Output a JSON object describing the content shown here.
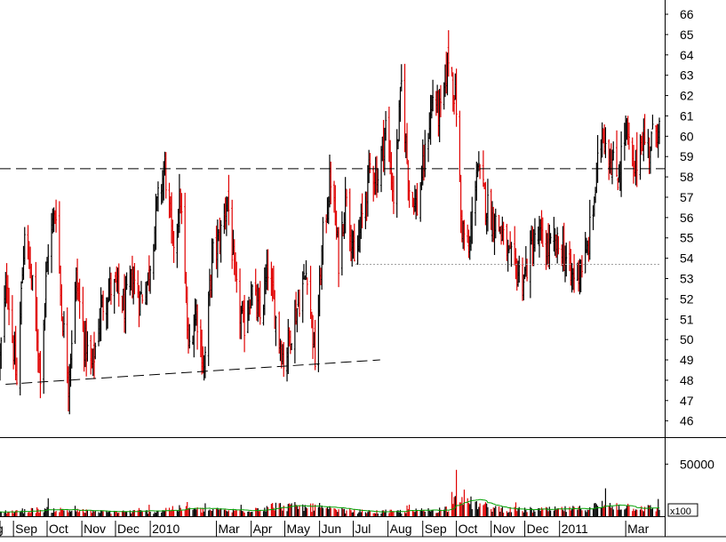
{
  "chart_data": [
    {
      "type": "ohlc",
      "title": "",
      "xlabel": "",
      "ylabel": "",
      "ylim": [
        45.2,
        66.7
      ],
      "y_ticks": [
        46,
        47,
        48,
        49,
        50,
        51,
        52,
        53,
        54,
        55,
        56,
        57,
        58,
        59,
        60,
        61,
        62,
        63,
        64,
        65,
        66
      ],
      "x_tick_labels": [
        "g",
        "Sep",
        "Oct",
        "Nov",
        "Dec",
        "2010",
        "Mar",
        "Apr",
        "May",
        "Jun",
        "Jul",
        "Aug",
        "Sep",
        "Oct",
        "Nov",
        "Dec",
        "2011",
        "Mar"
      ],
      "grid": false,
      "legend": "none",
      "colors": {
        "up": "#000000",
        "down": "#e00000",
        "trendline": "#000000",
        "support_line": "#a0a0a0"
      },
      "anchors": {
        "dates": [
          "2009-08-20",
          "2009-08-26",
          "2009-09-04",
          "2009-09-11",
          "2009-09-18",
          "2009-09-25",
          "2009-10-02",
          "2009-10-09",
          "2009-10-14",
          "2009-10-20",
          "2009-10-27",
          "2009-11-03",
          "2009-11-10",
          "2009-11-18",
          "2009-11-25",
          "2009-12-02",
          "2009-12-09",
          "2009-12-16",
          "2009-12-23",
          "2009-12-30",
          "2010-01-07",
          "2010-01-14",
          "2010-01-21",
          "2010-01-28",
          "2010-02-04",
          "2010-02-11",
          "2010-02-18",
          "2010-02-25",
          "2010-03-04",
          "2010-03-11",
          "2010-03-18",
          "2010-03-25",
          "2010-04-01",
          "2010-04-09",
          "2010-04-16",
          "2010-04-23",
          "2010-04-30",
          "2010-05-07",
          "2010-05-14",
          "2010-05-21",
          "2010-05-28",
          "2010-06-04",
          "2010-06-11",
          "2010-06-18",
          "2010-06-25",
          "2010-07-02",
          "2010-07-09",
          "2010-07-16",
          "2010-07-23",
          "2010-07-30",
          "2010-08-06",
          "2010-08-13",
          "2010-08-20",
          "2010-08-27",
          "2010-09-03",
          "2010-09-10",
          "2010-09-17",
          "2010-09-24",
          "2010-10-01",
          "2010-10-05",
          "2010-10-12",
          "2010-10-19",
          "2010-10-26",
          "2010-11-02",
          "2010-11-09",
          "2010-11-16",
          "2010-11-23",
          "2010-11-30",
          "2010-12-07",
          "2010-12-14",
          "2010-12-21",
          "2010-12-28",
          "2011-01-04",
          "2011-01-11",
          "2011-01-18",
          "2011-01-25",
          "2011-02-01",
          "2011-02-08",
          "2011-02-15",
          "2011-02-22",
          "2011-03-01",
          "2011-03-08",
          "2011-03-15",
          "2011-03-22",
          "2011-03-29"
        ],
        "close": [
          49.0,
          53.0,
          47.8,
          55.5,
          52.5,
          48.5,
          54.5,
          56.5,
          51.5,
          48.0,
          53.0,
          50.0,
          48.5,
          51.5,
          52.5,
          52.5,
          51.5,
          53.0,
          52.0,
          53.0,
          56.5,
          58.5,
          54.5,
          57.0,
          49.5,
          51.5,
          48.5,
          54.0,
          55.0,
          57.0,
          52.5,
          50.5,
          52.5,
          51.0,
          53.5,
          51.0,
          49.0,
          50.5,
          52.0,
          53.5,
          49.0,
          55.0,
          58.0,
          54.0,
          57.5,
          53.5,
          56.0,
          58.5,
          58.0,
          60.5,
          57.0,
          62.5,
          57.5,
          56.5,
          59.0,
          62.0,
          61.0,
          64.0,
          61.5,
          56.0,
          54.0,
          58.5,
          57.0,
          56.0,
          55.5,
          54.0,
          53.5,
          53.0,
          54.5,
          55.0,
          54.5,
          54.5,
          54.5,
          53.0,
          53.5,
          54.0,
          57.0,
          60.5,
          59.0,
          58.0,
          60.5,
          58.0,
          60.0,
          59.5,
          60.5
        ]
      },
      "trendline": {
        "from": [
          "2009-08-25",
          47.8
        ],
        "to": [
          "2010-07-25",
          49.0
        ]
      },
      "resistance_level": 58.4,
      "support_line": {
        "from": "2010-07-03",
        "to": "2011-03-31",
        "value": 53.7
      }
    },
    {
      "type": "bar",
      "title": "",
      "xlabel": "",
      "ylabel": "",
      "y_tick_labels": [
        "50000"
      ],
      "unit_label": "x100",
      "colors": {
        "up": "#000000",
        "down": "#e00000",
        "moving_average": "#00a000"
      },
      "volume_x100": {
        "dates": [
          "2009-08-20",
          "2009-10-01",
          "2009-11-15",
          "2010-01-05",
          "2010-01-20",
          "2010-02-15",
          "2010-03-20",
          "2010-04-20",
          "2010-05-15",
          "2010-06-15",
          "2010-07-15",
          "2010-08-15",
          "2010-09-15",
          "2010-09-25",
          "2010-10-01",
          "2010-10-05",
          "2010-10-15",
          "2010-11-01",
          "2010-11-20",
          "2010-12-20",
          "2011-01-20",
          "2011-02-10",
          "2011-03-01",
          "2011-03-29"
        ],
        "values": [
          4000,
          6500,
          4000,
          4500,
          7500,
          6000,
          5000,
          9500,
          9000,
          6000,
          4000,
          4500,
          6000,
          8000,
          38000,
          20000,
          12000,
          8000,
          6000,
          6000,
          7000,
          11000,
          9500,
          7000
        ]
      }
    }
  ]
}
